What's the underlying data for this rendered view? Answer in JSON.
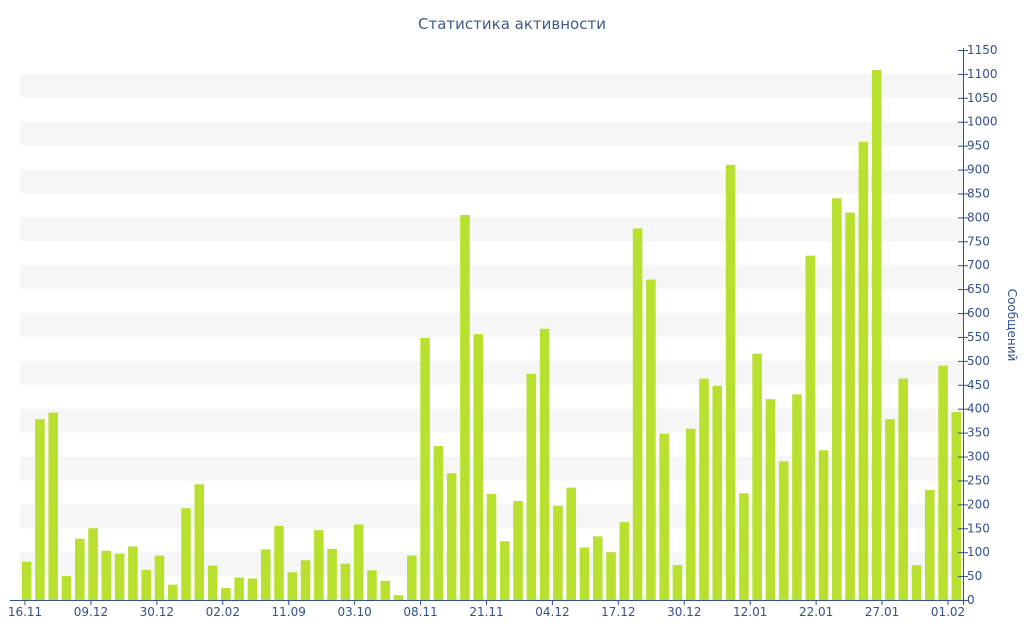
{
  "chart_data": {
    "type": "bar",
    "title": "Статистика активности",
    "ylabel": "Сообщений",
    "xlabel": "",
    "ylim": [
      0,
      1150
    ],
    "y_tick_step": 50,
    "y_axis_side": "right",
    "grid": "alternating horizontal bands",
    "legend": "none",
    "bar_color": "#b8e02e",
    "band_color": "#f6f6f6",
    "axis_color": "#33508f",
    "text_color": "#33508f",
    "x_tick_labels": [
      "16.11",
      "09.12",
      "30.12",
      "02.02",
      "11.09",
      "03.10",
      "08.11",
      "21.11",
      "04.12",
      "17.12",
      "30.12",
      "12.01",
      "22.01",
      "27.01",
      "01.02"
    ],
    "values": [
      80,
      378,
      392,
      50,
      128,
      150,
      103,
      97,
      112,
      63,
      93,
      32,
      192,
      242,
      72,
      25,
      47,
      45,
      106,
      155,
      58,
      83,
      146,
      107,
      76,
      158,
      62,
      40,
      10,
      93,
      548,
      322,
      265,
      805,
      556,
      222,
      123,
      207,
      473,
      567,
      197,
      235,
      110,
      133,
      100,
      163,
      777,
      670,
      348,
      73,
      358,
      463,
      448,
      910,
      223,
      515,
      420,
      290,
      430,
      720,
      313,
      840,
      810,
      958,
      1108,
      378,
      463,
      73,
      230,
      490,
      393
    ]
  }
}
